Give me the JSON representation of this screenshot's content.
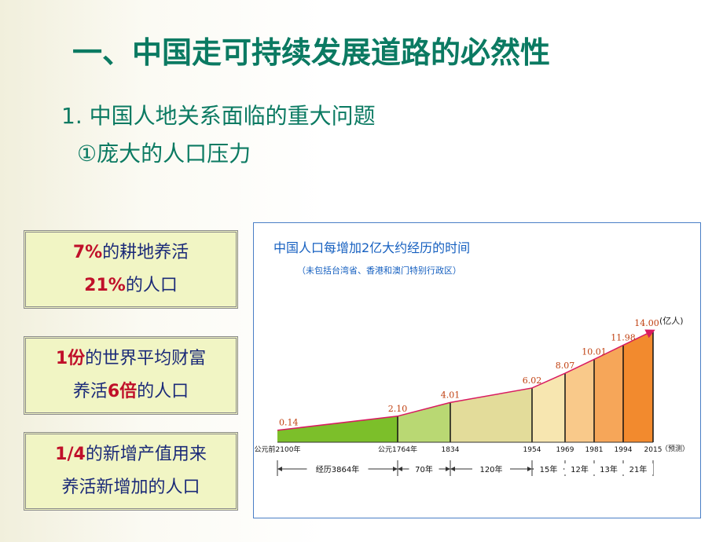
{
  "title": "一、中国走可持续发展道路的必然性",
  "heading": "1. 中国人地关系面临的重大问题",
  "subheading": "①庞大的人口压力",
  "boxes": [
    {
      "lines": [
        [
          "7%",
          "的耕地养活"
        ],
        [
          "21%",
          "的人口"
        ]
      ]
    },
    {
      "lines": [
        [
          "1份",
          "的世界平均财富"
        ],
        [
          "养活",
          "6倍",
          "的人口"
        ]
      ]
    },
    {
      "lines": [
        [
          "1/4",
          "的新增产值用来"
        ],
        [
          "养活新增加的人口"
        ]
      ]
    }
  ],
  "chart_data": {
    "type": "area-line",
    "title": "中国人口每增加2亿大约经历的时间",
    "subtitle": "（未包括台湾省、香港和澳门特别行政区）",
    "unit": "(亿人)",
    "forecast_note": "（预测）",
    "categories": [
      "公元前2100年",
      "公元1764年",
      "1834",
      "1954",
      "1969",
      "1981",
      "1994",
      "2015"
    ],
    "values": [
      0.14,
      2.1,
      4.01,
      6.02,
      8.07,
      10.01,
      11.98,
      14.0
    ],
    "value_labels": [
      "0.14",
      "2.10",
      "4.01",
      "6.02",
      "8.07",
      "10.01",
      "11.98",
      "14.00"
    ],
    "durations": [
      "经历3864年",
      "70年",
      "120年",
      "15年",
      "12年",
      "13年",
      "21年"
    ],
    "line_color": "#d81b60",
    "colors": [
      "#7cbf2a",
      "#b9d873",
      "#e3dc9a",
      "#f7e6b0",
      "#f9c98a",
      "#f6a659",
      "#f28a2e"
    ]
  }
}
